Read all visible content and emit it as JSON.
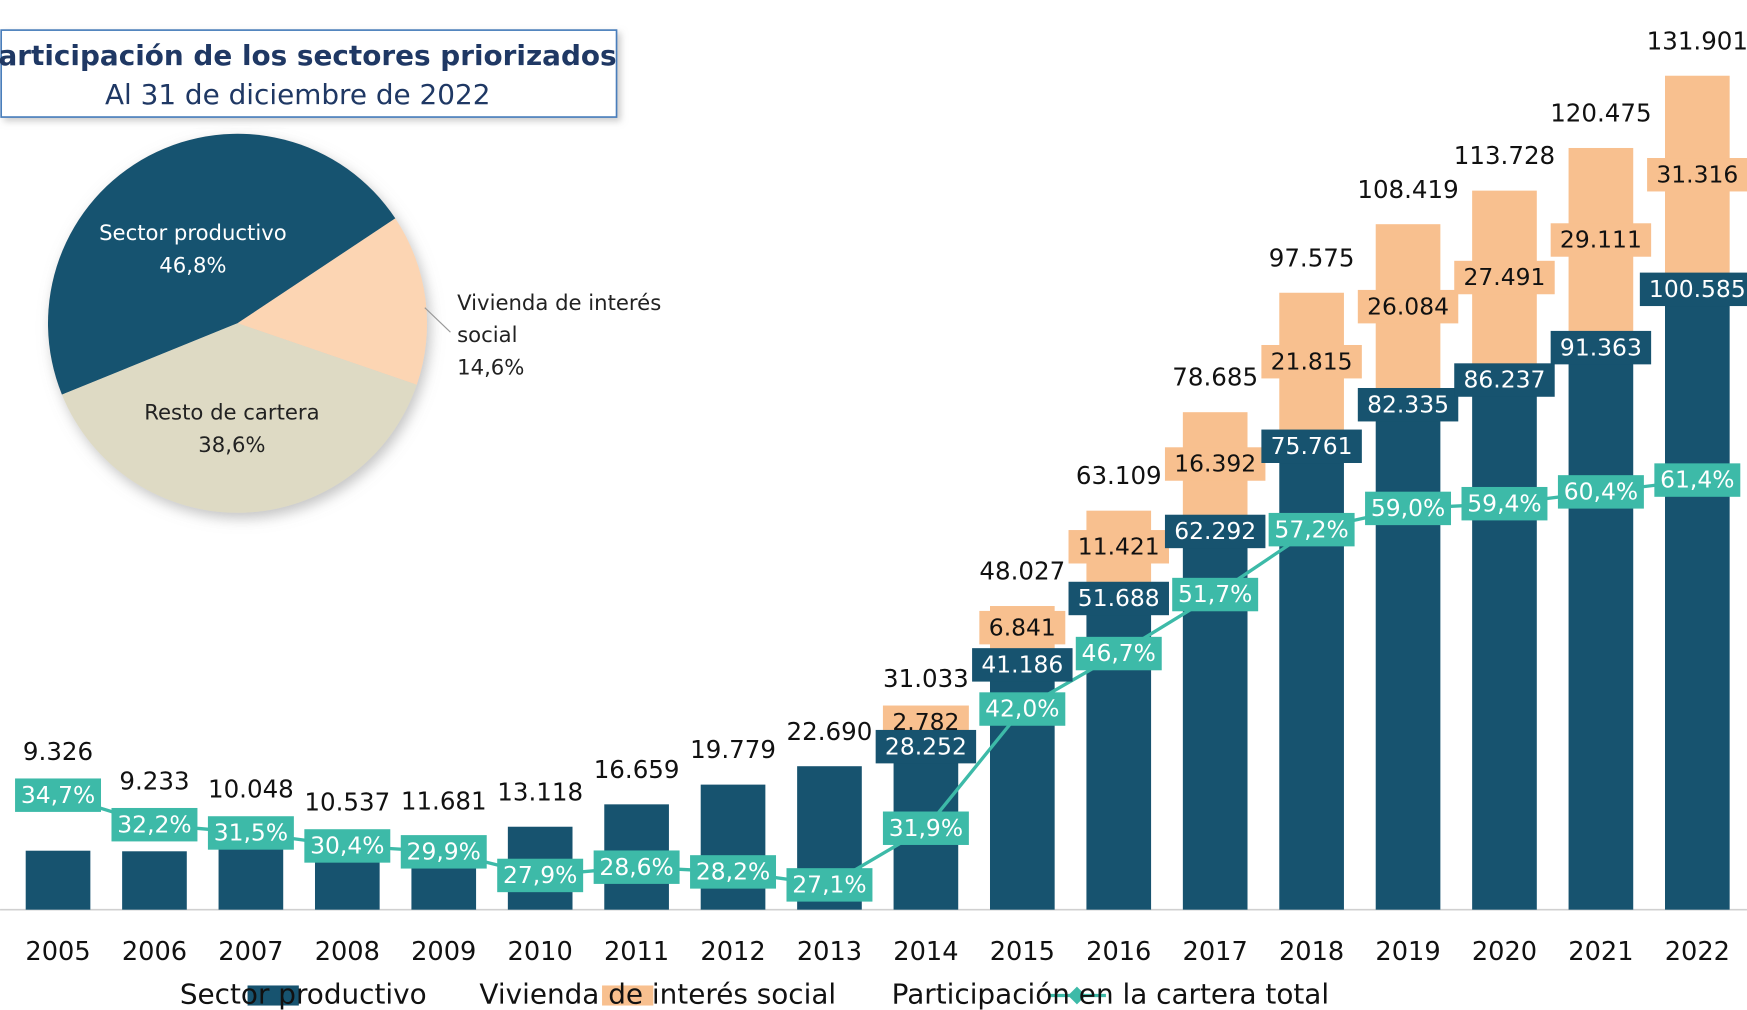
{
  "chart_data": [
    {
      "type": "bar-line",
      "categories": [
        "2005",
        "2006",
        "2007",
        "2008",
        "2009",
        "2010",
        "2011",
        "2012",
        "2013",
        "2014",
        "2015",
        "2016",
        "2017",
        "2018",
        "2019",
        "2020",
        "2021",
        "2022"
      ],
      "series": [
        {
          "name": "Sector productivo",
          "color": "#17536f",
          "values": [
            9326,
            9233,
            10048,
            10537,
            11681,
            13118,
            16659,
            19779,
            22690,
            28252,
            41186,
            51688,
            62292,
            75761,
            82335,
            86237,
            91363,
            100585
          ],
          "value_labels": [
            null,
            null,
            null,
            null,
            null,
            null,
            null,
            null,
            null,
            "28.252",
            "41.186",
            "51.688",
            "62.292",
            "75.761",
            "82.335",
            "86.237",
            "91.363",
            "100.585"
          ]
        },
        {
          "name": "Vivienda de interés social",
          "color": "#f8c08f",
          "values": [
            null,
            null,
            null,
            null,
            null,
            null,
            null,
            null,
            null,
            2782,
            6841,
            11421,
            16392,
            21815,
            26084,
            27491,
            29111,
            31316
          ],
          "value_labels": [
            null,
            null,
            null,
            null,
            null,
            null,
            null,
            null,
            null,
            "2.782",
            "6.841",
            "11.421",
            "16.392",
            "21.815",
            "26.084",
            "27.491",
            "29.111",
            "31.316"
          ]
        },
        {
          "name": "Participación en la cartera total",
          "color": "#3dbaa8",
          "axis": "y2",
          "values": [
            34.7,
            32.2,
            31.5,
            30.4,
            29.9,
            27.9,
            28.6,
            28.2,
            27.1,
            31.9,
            42.0,
            46.7,
            51.7,
            57.2,
            59.0,
            59.4,
            60.4,
            61.4
          ],
          "value_labels": [
            "34,7%",
            "32,2%",
            "31,5%",
            "30,4%",
            "29,9%",
            "27,9%",
            "28,6%",
            "28,2%",
            "27,1%",
            "31,9%",
            "42,0%",
            "46,7%",
            "51,7%",
            "57,2%",
            "59,0%",
            "59,4%",
            "60,4%",
            "61,4%"
          ]
        }
      ],
      "totals": {
        "values": [
          9326,
          9233,
          10048,
          10537,
          11681,
          13118,
          16659,
          19779,
          22690,
          31033,
          48027,
          63109,
          78685,
          97575,
          108419,
          113728,
          120475,
          131901
        ],
        "value_labels": [
          "9.326",
          "9.233",
          "10.048",
          "10.537",
          "11.681",
          "13.118",
          "16.659",
          "19.779",
          "22.690",
          "31.033",
          "48.027",
          "63.109",
          "78.685",
          "97.575",
          "108.419",
          "113.728",
          "120.475",
          "131.901"
        ]
      },
      "ylim": [
        0,
        140000
      ],
      "y2lim": [
        25,
        100
      ],
      "legend": "bottom"
    },
    {
      "type": "pie",
      "title": "Participación de los sectores priorizados",
      "subtitle": "Al 31 de diciembre de 2022",
      "categories": [
        "Sector productivo",
        "Vivienda de interés social",
        "Resto de cartera"
      ],
      "values": [
        46.8,
        14.6,
        38.6
      ],
      "value_labels": [
        "46,8%",
        "14,6%",
        "38,6%"
      ],
      "colors": [
        "#17536f",
        "#fcd5b3",
        "#dedac4"
      ]
    }
  ]
}
